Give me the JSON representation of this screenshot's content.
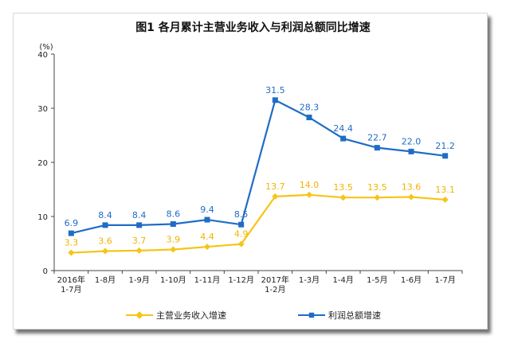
{
  "title": "图1  各月累计主营业务收入与利润总额同比增速",
  "y_unit": "(%)",
  "colors": {
    "revenue": "#f5c518",
    "profit": "#1f6cc7"
  },
  "legend": [
    {
      "name": "主营业务收入增速",
      "icon": "diamond-marker"
    },
    {
      "name": "利润总额增速",
      "icon": "square-marker"
    }
  ],
  "chart_data": {
    "type": "line",
    "title": "图1  各月累计主营业务收入与利润总额同比增速",
    "ylabel": "(%)",
    "ylim": [
      0,
      40
    ],
    "yticks": [
      0,
      10,
      20,
      30,
      40
    ],
    "categories": [
      [
        "2016年",
        "1-7月"
      ],
      [
        "1-8月"
      ],
      [
        "1-9月"
      ],
      [
        "1-10月"
      ],
      [
        "1-11月"
      ],
      [
        "1-12月"
      ],
      [
        "2017年",
        "1-2月"
      ],
      [
        "1-3月"
      ],
      [
        "1-4月"
      ],
      [
        "1-5月"
      ],
      [
        "1-6月"
      ],
      [
        "1-7月"
      ]
    ],
    "series": [
      {
        "name": "主营业务收入增速",
        "values": [
          3.3,
          3.6,
          3.7,
          3.9,
          4.4,
          4.9,
          13.7,
          14.0,
          13.5,
          13.5,
          13.6,
          13.1
        ]
      },
      {
        "name": "利润总额增速",
        "values": [
          6.9,
          8.4,
          8.4,
          8.6,
          9.4,
          8.5,
          31.5,
          28.3,
          24.4,
          22.7,
          22.0,
          21.2
        ]
      }
    ],
    "grid": false,
    "legend_position": "bottom"
  }
}
